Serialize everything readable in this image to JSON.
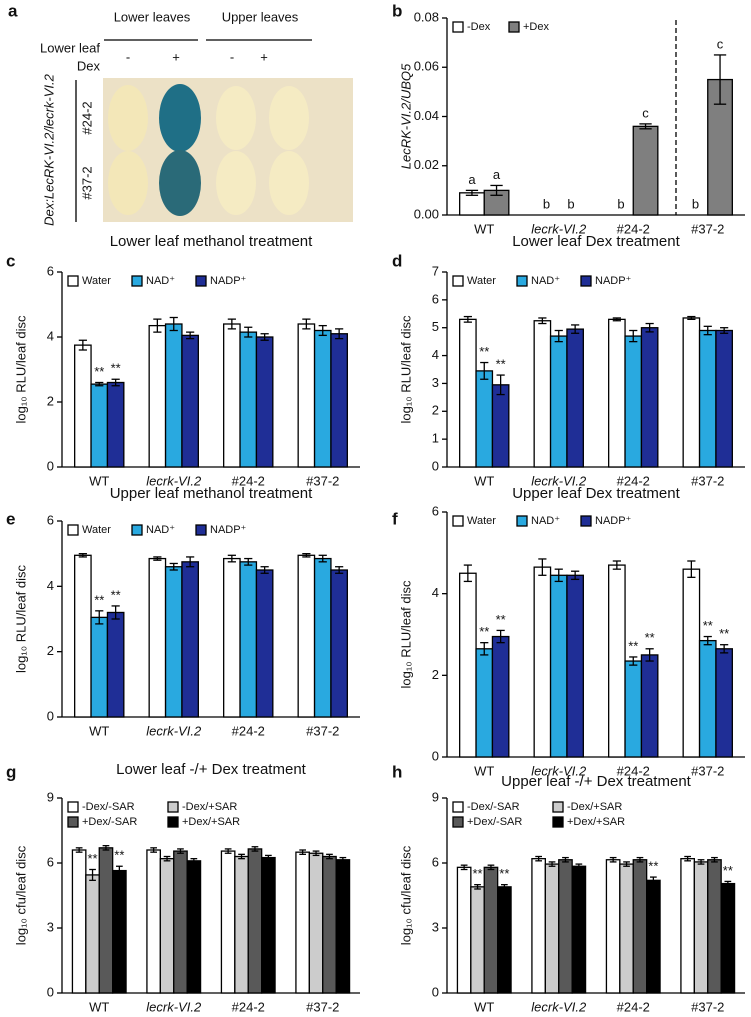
{
  "panel_a": {
    "panel": "a",
    "headers": [
      "Lower leaves",
      "Upper leaves"
    ],
    "row_labels": [
      "Lower leaf",
      "Dex"
    ],
    "dex_signs": [
      "-",
      "+",
      "-",
      "+"
    ],
    "lines": [
      "#24-2",
      "#37-2"
    ],
    "genotype": "Dex:LecRK-VI.2/lecrk-VI.2"
  },
  "chart_data": [
    {
      "type": "bar",
      "panel": "b",
      "y_label": "LecRK-VI.2/UBQ5",
      "categories": [
        "WT",
        "lecrk-VI.2",
        "#24-2",
        "#37-2"
      ],
      "legend": "upper left",
      "annotation_color": "#000000",
      "series": [
        {
          "name": "-Dex",
          "color": "#ffffff",
          "values": [
            0.009,
            0,
            0,
            0
          ],
          "errors": [
            0.001,
            0,
            0,
            0
          ],
          "annotations": [
            "a",
            "b",
            "b",
            "b"
          ]
        },
        {
          "name": "+Dex",
          "color": "#7f7f7f",
          "values": [
            0.01,
            0,
            0.036,
            0.055
          ],
          "errors": [
            0.002,
            0,
            0.001,
            0.01
          ],
          "annotations": [
            "a",
            "b",
            "c",
            "c"
          ]
        }
      ],
      "ylim": [
        0,
        0.08
      ],
      "yticks": [
        {
          "value": 0,
          "label": "0.00"
        },
        0.02,
        0.04,
        0.06,
        0.08
      ]
    },
    {
      "type": "bar",
      "panel": "c",
      "title": "Lower leaf methanol treatment",
      "y_label": "log₁₀ RLU/leaf disc",
      "categories": [
        "WT",
        "lecrk-VI.2",
        "#24-2",
        "#37-2"
      ],
      "legend": "upper left",
      "annotation_color": "#e8312a",
      "series": [
        {
          "name": "Water",
          "color": "#ffffff",
          "values": [
            3.75,
            4.35,
            4.4,
            4.4
          ],
          "errors": [
            0.15,
            0.2,
            0.15,
            0.15
          ]
        },
        {
          "name": "NAD⁺",
          "color": "#29a9e0",
          "values": [
            2.55,
            4.4,
            4.15,
            4.2
          ],
          "errors": [
            0.05,
            0.2,
            0.15,
            0.15
          ],
          "annotations": [
            "**",
            null,
            null,
            null
          ]
        },
        {
          "name": "NADP⁺",
          "color": "#1f2e96",
          "values": [
            2.6,
            4.05,
            4.0,
            4.1
          ],
          "errors": [
            0.1,
            0.1,
            0.1,
            0.15
          ],
          "annotations": [
            "**",
            null,
            null,
            null
          ]
        }
      ],
      "ylim": [
        0,
        6
      ],
      "yticks": [
        0,
        2,
        4,
        6
      ]
    },
    {
      "type": "bar",
      "panel": "d",
      "title": "Lower leaf Dex treatment",
      "y_label": "log₁₀ RLU/leaf disc",
      "categories": [
        "WT",
        "lecrk-VI.2",
        "#24-2",
        "#37-2"
      ],
      "legend": "upper left",
      "annotation_color": "#e8312a",
      "series": [
        {
          "name": "Water",
          "color": "#ffffff",
          "values": [
            5.3,
            5.25,
            5.3,
            5.35
          ],
          "errors": [
            0.1,
            0.1,
            0.05,
            0.05
          ]
        },
        {
          "name": "NAD⁺",
          "color": "#29a9e0",
          "values": [
            3.45,
            4.7,
            4.7,
            4.9
          ],
          "errors": [
            0.3,
            0.2,
            0.2,
            0.15
          ],
          "annotations": [
            "**",
            null,
            null,
            null
          ]
        },
        {
          "name": "NADP⁺",
          "color": "#1f2e96",
          "values": [
            2.95,
            4.95,
            5.0,
            4.9
          ],
          "errors": [
            0.35,
            0.15,
            0.15,
            0.1
          ],
          "annotations": [
            "**",
            null,
            null,
            null
          ]
        }
      ],
      "ylim": [
        0,
        7
      ],
      "yticks": [
        0,
        1,
        2,
        3,
        4,
        5,
        6,
        7
      ]
    },
    {
      "type": "bar",
      "panel": "e",
      "title": "Upper leaf methanol treatment",
      "y_label": "log₁₀ RLU/leaf disc",
      "categories": [
        "WT",
        "lecrk-VI.2",
        "#24-2",
        "#37-2"
      ],
      "legend": "upper left",
      "annotation_color": "#e8312a",
      "series": [
        {
          "name": "Water",
          "color": "#ffffff",
          "values": [
            4.95,
            4.85,
            4.85,
            4.95
          ],
          "errors": [
            0.05,
            0.05,
            0.1,
            0.05
          ]
        },
        {
          "name": "NAD⁺",
          "color": "#29a9e0",
          "values": [
            3.05,
            4.6,
            4.75,
            4.85
          ],
          "errors": [
            0.2,
            0.1,
            0.1,
            0.1
          ],
          "annotations": [
            "**",
            null,
            null,
            null
          ]
        },
        {
          "name": "NADP⁺",
          "color": "#1f2e96",
          "values": [
            3.2,
            4.75,
            4.5,
            4.5
          ],
          "errors": [
            0.2,
            0.15,
            0.1,
            0.1
          ],
          "annotations": [
            "**",
            null,
            null,
            null
          ]
        }
      ],
      "ylim": [
        0,
        6
      ],
      "yticks": [
        0,
        2,
        4,
        6
      ]
    },
    {
      "type": "bar",
      "panel": "f",
      "title": "Upper leaf Dex treatment",
      "y_label": "log₁₀ RLU/leaf disc",
      "categories": [
        "WT",
        "lecrk-VI.2",
        "#24-2",
        "#37-2"
      ],
      "legend": "upper left",
      "annotation_color": "#e8312a",
      "series": [
        {
          "name": "Water",
          "color": "#ffffff",
          "values": [
            4.5,
            4.65,
            4.7,
            4.6
          ],
          "errors": [
            0.2,
            0.2,
            0.1,
            0.2
          ]
        },
        {
          "name": "NAD⁺",
          "color": "#29a9e0",
          "values": [
            2.65,
            4.45,
            2.35,
            2.85
          ],
          "errors": [
            0.15,
            0.15,
            0.1,
            0.1
          ],
          "annotations": [
            "**",
            null,
            "**",
            "**"
          ]
        },
        {
          "name": "NADP⁺",
          "color": "#1f2e96",
          "values": [
            2.95,
            4.45,
            2.5,
            2.65
          ],
          "errors": [
            0.15,
            0.1,
            0.15,
            0.1
          ],
          "annotations": [
            "**",
            null,
            "**",
            "**"
          ]
        }
      ],
      "ylim": [
        0,
        6
      ],
      "yticks": [
        0,
        2,
        4,
        6
      ]
    },
    {
      "type": "bar",
      "panel": "g",
      "title": "Lower leaf -/+ Dex treatment",
      "y_label": "log₁₀ cfu/leaf disc",
      "categories": [
        "WT",
        "lecrk-VI.2",
        "#24-2",
        "#37-2"
      ],
      "legend": "upper left",
      "annotation_color": "#e8312a",
      "series": [
        {
          "name": "-Dex/-SAR",
          "color": "#ffffff",
          "values": [
            6.6,
            6.6,
            6.55,
            6.5
          ],
          "errors": [
            0.1,
            0.1,
            0.1,
            0.1
          ]
        },
        {
          "name": "-Dex/+SAR",
          "color": "#cccccc",
          "values": [
            5.45,
            6.2,
            6.3,
            6.45
          ],
          "errors": [
            0.25,
            0.1,
            0.1,
            0.1
          ],
          "annotations": [
            "**",
            null,
            null,
            null
          ]
        },
        {
          "name": "+Dex/-SAR",
          "color": "#595959",
          "values": [
            6.7,
            6.55,
            6.65,
            6.3
          ],
          "errors": [
            0.1,
            0.1,
            0.1,
            0.1
          ]
        },
        {
          "name": "+Dex/+SAR",
          "color": "#000000",
          "values": [
            5.65,
            6.1,
            6.25,
            6.15
          ],
          "errors": [
            0.2,
            0.1,
            0.1,
            0.1
          ],
          "annotations": [
            "**",
            null,
            null,
            null
          ]
        }
      ],
      "ylim": [
        0,
        9
      ],
      "yticks": [
        0,
        3,
        6,
        9
      ]
    },
    {
      "type": "bar",
      "panel": "h",
      "title": "Upper leaf -/+ Dex treatment",
      "y_label": "log₁₀ cfu/leaf disc",
      "categories": [
        "WT",
        "lecrk-VI.2",
        "#24-2",
        "#37-2"
      ],
      "legend": "upper left",
      "annotation_color": "#e8312a",
      "series": [
        {
          "name": "-Dex/-SAR",
          "color": "#ffffff",
          "values": [
            5.8,
            6.2,
            6.15,
            6.2
          ],
          "errors": [
            0.1,
            0.1,
            0.1,
            0.1
          ]
        },
        {
          "name": "-Dex/+SAR",
          "color": "#cccccc",
          "values": [
            4.9,
            5.95,
            5.95,
            6.05
          ],
          "errors": [
            0.1,
            0.1,
            0.1,
            0.1
          ],
          "annotations": [
            "**",
            null,
            null,
            null
          ]
        },
        {
          "name": "+Dex/-SAR",
          "color": "#595959",
          "values": [
            5.8,
            6.15,
            6.15,
            6.15
          ],
          "errors": [
            0.1,
            0.1,
            0.1,
            0.1
          ]
        },
        {
          "name": "+Dex/+SAR",
          "color": "#000000",
          "values": [
            4.9,
            5.85,
            5.2,
            5.05
          ],
          "errors": [
            0.1,
            0.1,
            0.15,
            0.1
          ],
          "annotations": [
            "**",
            null,
            "**",
            "**"
          ]
        }
      ],
      "ylim": [
        0,
        9
      ],
      "yticks": [
        0,
        3,
        6,
        9
      ]
    }
  ]
}
